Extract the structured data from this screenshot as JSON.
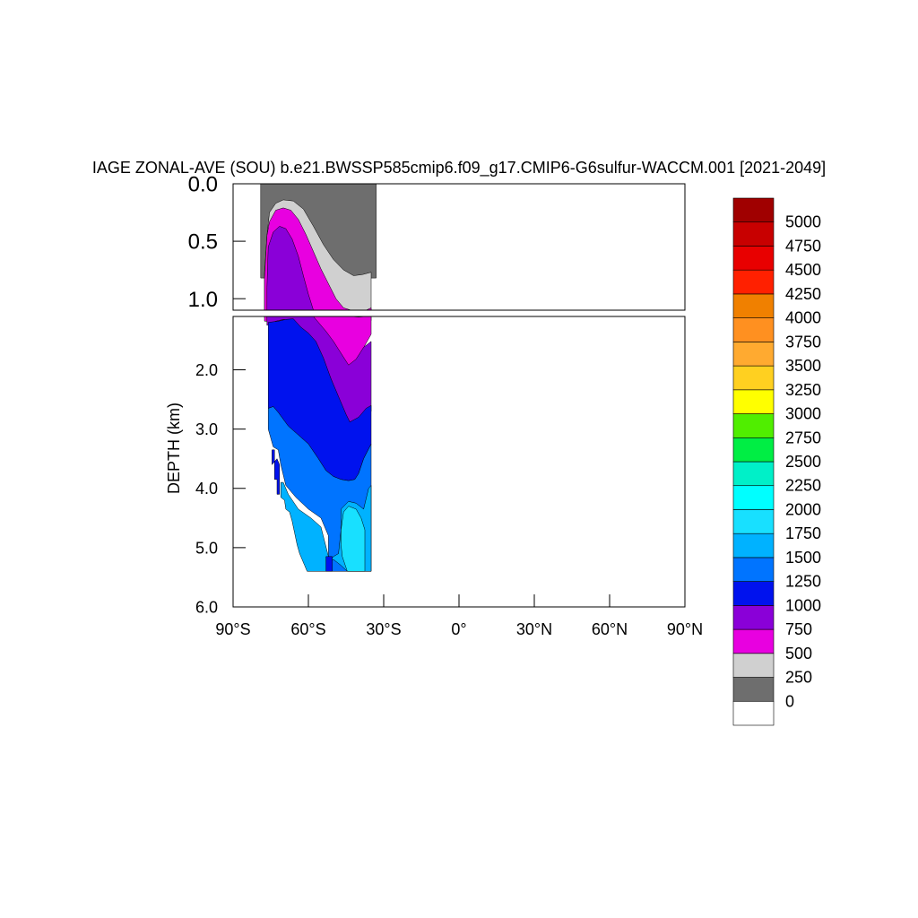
{
  "chart_data": {
    "type": "heatmap",
    "title": "IAGE ZONAL-AVE (SOU) b.e21.BWSSP585cmip6.f09_g17.CMIP6-G6sulfur-WACCM.001 [2021-2049]",
    "xlabel": "",
    "ylabel": "DEPTH (km)",
    "x_ticks": [
      "90°S",
      "60°S",
      "30°S",
      "0°",
      "30°N",
      "60°N",
      "90°N"
    ],
    "x_tick_values": [
      -90,
      -60,
      -30,
      0,
      30,
      60,
      90
    ],
    "xlim": [
      -90,
      90
    ],
    "upper_panel": {
      "ylim": [
        0.0,
        1.1
      ],
      "y_ticks": [
        "0.0",
        "0.5",
        "1.0"
      ],
      "y_tick_values": [
        0.0,
        0.5,
        1.0
      ]
    },
    "lower_panel": {
      "ylim": [
        1.1,
        6.0
      ],
      "y_ticks": [
        "2.0",
        "3.0",
        "4.0",
        "5.0",
        "6.0"
      ],
      "y_tick_values": [
        2.0,
        3.0,
        4.0,
        5.0,
        6.0
      ]
    },
    "colorbar": {
      "labels": [
        "0",
        "250",
        "500",
        "750",
        "1000",
        "1250",
        "1500",
        "1750",
        "2000",
        "2250",
        "2500",
        "2750",
        "3000",
        "3250",
        "3500",
        "3750",
        "4000",
        "4250",
        "4500",
        "4750",
        "5000"
      ],
      "colors": [
        "#ffffff",
        "#6e6e6e",
        "#d0d0d0",
        "#e800e0",
        "#8a00d8",
        "#0012ee",
        "#0074ff",
        "#00b2ff",
        "#18e0ff",
        "#00ffff",
        "#00f0c8",
        "#00ee44",
        "#50ee00",
        "#ffff00",
        "#ffd020",
        "#ffaa30",
        "#ff9020",
        "#f08000",
        "#ff2000",
        "#e80000",
        "#c80000",
        "#a00000"
      ]
    },
    "regions": [
      {
        "level": "250",
        "color": "#6e6e6e",
        "points": [
          [
            -79,
            0
          ],
          [
            -33,
            0
          ],
          [
            -33,
            0.82
          ],
          [
            -79,
            0.82
          ]
        ]
      },
      {
        "level": "500",
        "color": "#d0d0d0",
        "points": [
          [
            -77.5,
            0.78
          ],
          [
            -76.5,
            0.45
          ],
          [
            -75.5,
            0.25
          ],
          [
            -73,
            0.17
          ],
          [
            -70,
            0.14
          ],
          [
            -66,
            0.15
          ],
          [
            -62,
            0.22
          ],
          [
            -58,
            0.37
          ],
          [
            -54,
            0.53
          ],
          [
            -50,
            0.66
          ],
          [
            -46,
            0.75
          ],
          [
            -42,
            0.8
          ],
          [
            -38.5,
            0.79
          ],
          [
            -35,
            0.77
          ],
          [
            -35,
            1.17
          ],
          [
            -40,
            1.17
          ],
          [
            -45,
            1.16
          ],
          [
            -50,
            1.15
          ],
          [
            -55,
            1.15
          ],
          [
            -60,
            1.14
          ],
          [
            -65,
            1.13
          ],
          [
            -70,
            1.12
          ],
          [
            -75,
            1.12
          ],
          [
            -77.5,
            1.12
          ]
        ]
      },
      {
        "level": "750",
        "color": "#e800e0",
        "points": [
          [
            -77.5,
            0.82
          ],
          [
            -76.5,
            0.45
          ],
          [
            -75.5,
            0.33
          ],
          [
            -73,
            0.23
          ],
          [
            -70,
            0.21
          ],
          [
            -67,
            0.23
          ],
          [
            -64,
            0.31
          ],
          [
            -61,
            0.44
          ],
          [
            -58,
            0.59
          ],
          [
            -55,
            0.74
          ],
          [
            -52,
            0.87
          ],
          [
            -49,
            1.0
          ],
          [
            -46,
            1.08
          ],
          [
            -43,
            1.1
          ],
          [
            -40,
            1.11
          ],
          [
            -37,
            1.1
          ],
          [
            -35,
            1.08
          ],
          [
            -35,
            1.4
          ],
          [
            -37,
            1.55
          ],
          [
            -40,
            1.78
          ],
          [
            -42,
            1.95
          ],
          [
            -43.5,
            2.05
          ],
          [
            -46,
            1.9
          ],
          [
            -50,
            1.65
          ],
          [
            -54,
            1.4
          ],
          [
            -58,
            1.22
          ],
          [
            -62,
            1.14
          ],
          [
            -66,
            1.13
          ],
          [
            -70,
            1.15
          ],
          [
            -72,
            1.2
          ],
          [
            -75.5,
            1.17
          ],
          [
            -76.5,
            1.18
          ],
          [
            -77.5,
            1.18
          ]
        ]
      },
      {
        "level": "1000",
        "color": "#8a00d8",
        "points": [
          [
            -76.5,
            0.9
          ],
          [
            -76,
            0.55
          ],
          [
            -74,
            0.42
          ],
          [
            -71.5,
            0.37
          ],
          [
            -69,
            0.39
          ],
          [
            -66.5,
            0.48
          ],
          [
            -64,
            0.63
          ],
          [
            -62,
            0.8
          ],
          [
            -60,
            0.96
          ],
          [
            -58,
            1.1
          ],
          [
            -56,
            1.2
          ],
          [
            -53,
            1.35
          ],
          [
            -50,
            1.52
          ],
          [
            -47,
            1.72
          ],
          [
            -44,
            1.92
          ],
          [
            -41,
            1.82
          ],
          [
            -38,
            1.62
          ],
          [
            -35,
            1.52
          ],
          [
            -35,
            2.7
          ],
          [
            -38,
            2.75
          ],
          [
            -41,
            2.85
          ],
          [
            -43.5,
            2.88
          ],
          [
            -47,
            2.6
          ],
          [
            -51,
            2.15
          ],
          [
            -55,
            1.75
          ],
          [
            -59,
            1.45
          ],
          [
            -63,
            1.28
          ],
          [
            -67,
            1.17
          ],
          [
            -70,
            1.15
          ],
          [
            -73,
            1.18
          ],
          [
            -76.5,
            1.25
          ]
        ]
      },
      {
        "level": "1250",
        "color": "#0012ee",
        "points": [
          [
            -76,
            2.65
          ],
          [
            -76,
            1.2
          ],
          [
            -72,
            1.18
          ],
          [
            -69,
            1.15
          ],
          [
            -66,
            1.14
          ],
          [
            -63,
            1.28
          ],
          [
            -60,
            1.38
          ],
          [
            -57,
            1.52
          ],
          [
            -54,
            1.8
          ],
          [
            -51,
            2.15
          ],
          [
            -48,
            2.45
          ],
          [
            -45,
            2.75
          ],
          [
            -43.5,
            2.88
          ],
          [
            -40,
            2.8
          ],
          [
            -37,
            2.65
          ],
          [
            -35,
            2.6
          ],
          [
            -35,
            3.25
          ],
          [
            -38,
            3.5
          ],
          [
            -40,
            3.75
          ],
          [
            -41.5,
            3.85
          ],
          [
            -44,
            3.87
          ],
          [
            -47,
            3.85
          ],
          [
            -50,
            3.8
          ],
          [
            -53,
            3.7
          ],
          [
            -56,
            3.5
          ],
          [
            -60,
            3.25
          ],
          [
            -64,
            3.1
          ],
          [
            -68,
            2.95
          ],
          [
            -72,
            2.72
          ],
          [
            -74,
            2.62
          ]
        ]
      },
      {
        "level": "1500",
        "color": "#0074ff",
        "points": [
          [
            -76,
            2.65
          ],
          [
            -74,
            2.62
          ],
          [
            -72,
            2.72
          ],
          [
            -68,
            2.95
          ],
          [
            -64,
            3.1
          ],
          [
            -60,
            3.25
          ],
          [
            -56,
            3.5
          ],
          [
            -53,
            3.7
          ],
          [
            -50,
            3.8
          ],
          [
            -47,
            3.85
          ],
          [
            -44,
            3.87
          ],
          [
            -41.5,
            3.85
          ],
          [
            -40,
            3.75
          ],
          [
            -38,
            3.5
          ],
          [
            -35,
            3.25
          ],
          [
            -35,
            5.4
          ],
          [
            -52,
            5.4
          ],
          [
            -52,
            4.8
          ],
          [
            -55,
            4.5
          ],
          [
            -60,
            4.35
          ],
          [
            -65,
            4.15
          ],
          [
            -69,
            3.95
          ],
          [
            -71,
            3.6
          ],
          [
            -72,
            3.35
          ],
          [
            -74,
            3.3
          ],
          [
            -76,
            3.0
          ]
        ]
      },
      {
        "level": "1750",
        "color": "#00b2ff",
        "points": [
          [
            -71,
            4.15
          ],
          [
            -69.5,
            4.2
          ],
          [
            -69,
            4.35
          ],
          [
            -67.5,
            4.4
          ],
          [
            -66.5,
            4.55
          ],
          [
            -65.5,
            4.75
          ],
          [
            -64.5,
            4.95
          ],
          [
            -63.5,
            5.1
          ],
          [
            -62.5,
            5.2
          ],
          [
            -61.5,
            5.3
          ],
          [
            -60.5,
            5.4
          ],
          [
            -52,
            5.4
          ],
          [
            -52,
            5.25
          ],
          [
            -50,
            5.15
          ],
          [
            -48,
            5.1
          ],
          [
            -47,
            4.7
          ],
          [
            -47,
            4.35
          ],
          [
            -44,
            4.22
          ],
          [
            -41,
            4.25
          ],
          [
            -38,
            4.35
          ],
          [
            -36,
            4.0
          ],
          [
            -35,
            3.95
          ],
          [
            -35,
            5.4
          ],
          [
            -44.5,
            5.4
          ],
          [
            -47,
            5.3
          ],
          [
            -50,
            5.2
          ],
          [
            -52,
            5.25
          ],
          [
            -52,
            5.15
          ],
          [
            -55,
            4.65
          ],
          [
            -59,
            4.5
          ],
          [
            -64,
            4.35
          ],
          [
            -68,
            4.1
          ],
          [
            -70,
            3.9
          ],
          [
            -71,
            3.9
          ]
        ]
      },
      {
        "level": "2000",
        "color": "#18e0ff",
        "points": [
          [
            -47,
            4.7
          ],
          [
            -46,
            4.4
          ],
          [
            -44,
            4.3
          ],
          [
            -41,
            4.35
          ],
          [
            -39,
            4.5
          ],
          [
            -37.5,
            4.7
          ],
          [
            -37.5,
            5.4
          ],
          [
            -44.5,
            5.4
          ],
          [
            -46.5,
            5.15
          ],
          [
            -47,
            4.95
          ]
        ]
      },
      {
        "level": "1250",
        "color": "#0012ee",
        "points": [
          [
            -53,
            5.15
          ],
          [
            -50.5,
            5.15
          ],
          [
            -50.5,
            5.4
          ],
          [
            -53,
            5.4
          ]
        ]
      },
      {
        "level": "1250",
        "color": "#0012ee",
        "points": [
          [
            -74.5,
            3.35
          ],
          [
            -73.5,
            3.35
          ],
          [
            -73.5,
            3.85
          ],
          [
            -72.5,
            3.85
          ],
          [
            -72.5,
            4.1
          ],
          [
            -71.5,
            4.1
          ],
          [
            -71.5,
            3.6
          ],
          [
            -72.5,
            3.5
          ],
          [
            -74.5,
            3.6
          ]
        ]
      }
    ]
  }
}
